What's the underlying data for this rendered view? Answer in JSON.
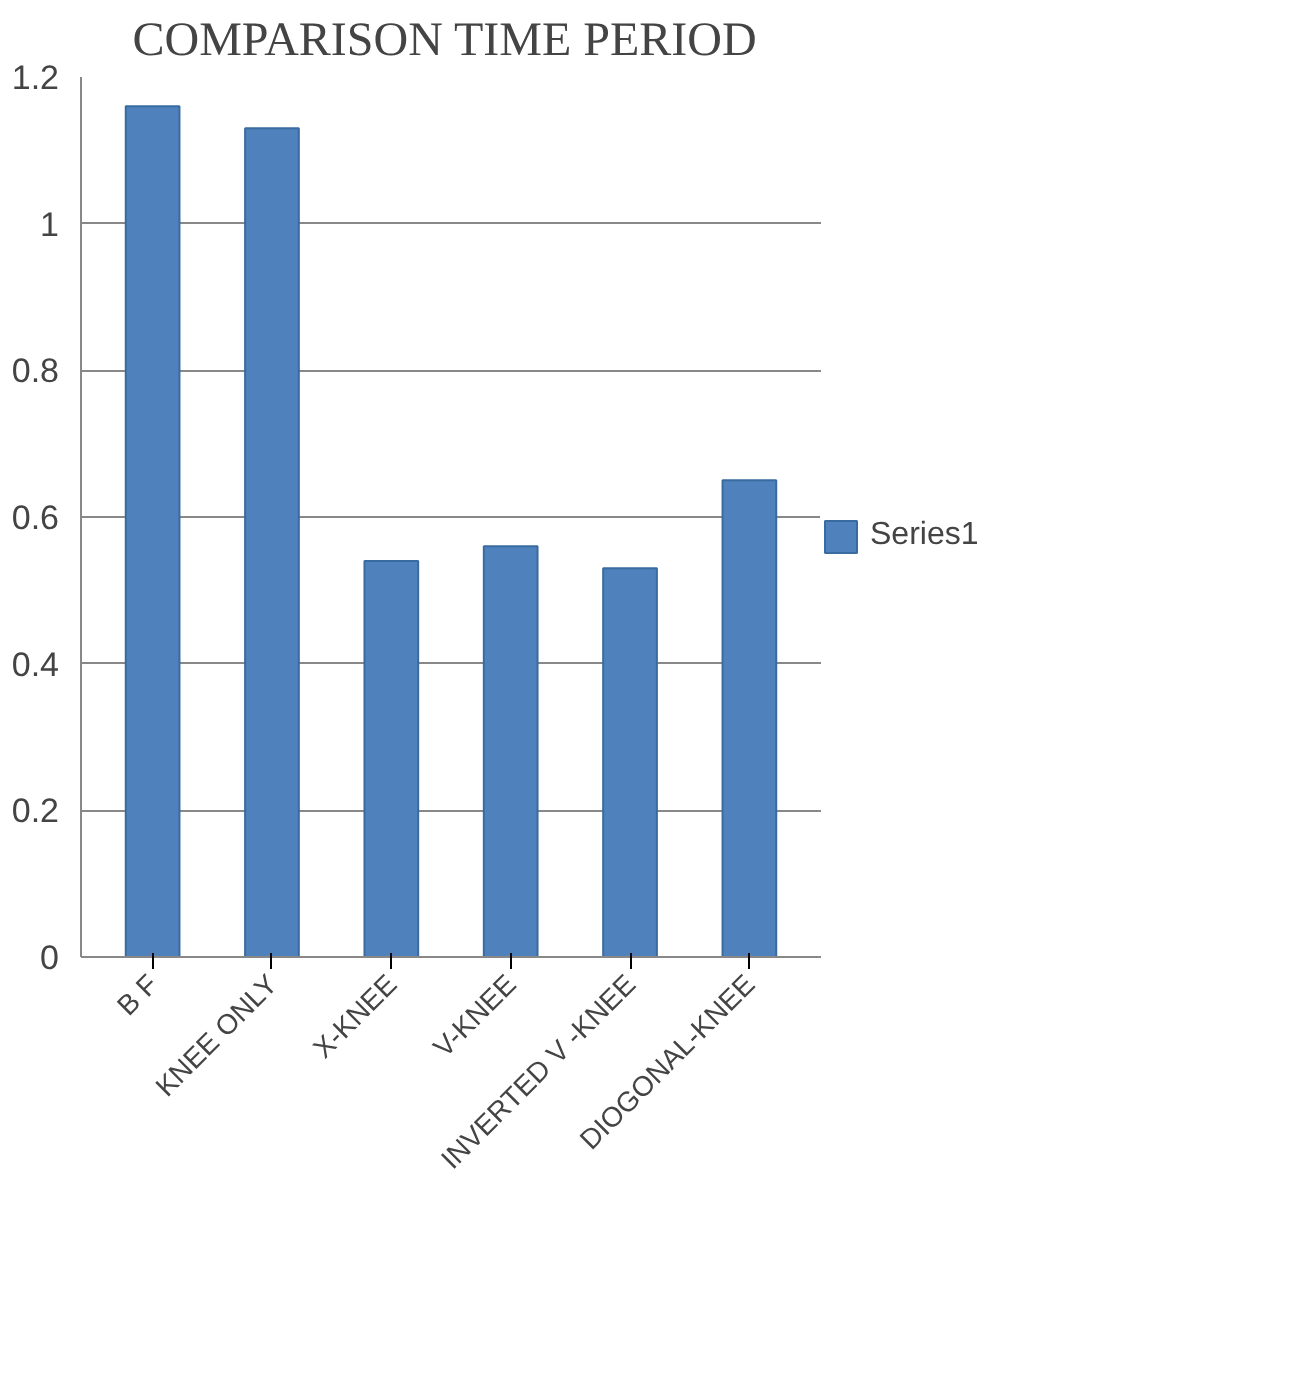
{
  "chart_data": {
    "type": "bar",
    "title": "COMPARISON  TIME PERIOD",
    "categories": [
      "B F",
      "KNEE ONLY",
      "X-KNEE",
      "V-KNEE",
      "INVERTED V -KNEE",
      "DIOGONAL-KNEE"
    ],
    "series": [
      {
        "name": "Series1",
        "color": "#4f81bd",
        "values": [
          1.16,
          1.13,
          0.54,
          0.56,
          0.53,
          0.65
        ]
      }
    ],
    "ylim": [
      0,
      1.2
    ],
    "yticks": [
      0,
      0.2,
      0.4,
      0.6,
      0.8,
      1,
      1.2
    ],
    "grid": "y",
    "legend": "right"
  }
}
